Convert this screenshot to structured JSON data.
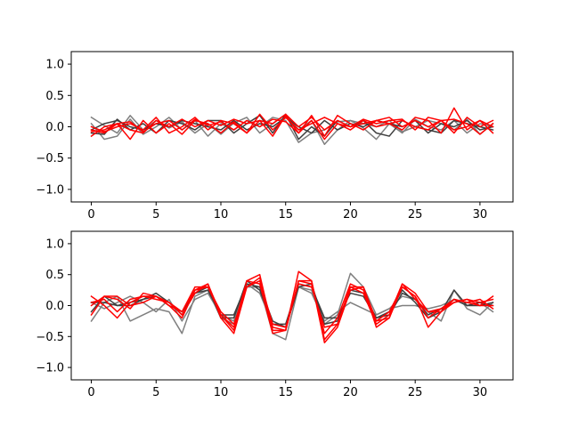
{
  "chart_data": [
    {
      "type": "line",
      "title": "",
      "xlabel": "",
      "ylabel": "",
      "xlim": [
        -1.55,
        32.55
      ],
      "ylim": [
        -1.2,
        1.2
      ],
      "x": [
        0,
        1,
        2,
        3,
        4,
        5,
        6,
        7,
        8,
        9,
        10,
        11,
        12,
        13,
        14,
        15,
        16,
        17,
        18,
        19,
        20,
        21,
        22,
        23,
        24,
        25,
        26,
        27,
        28,
        29,
        30,
        31
      ],
      "xticks": [
        0,
        5,
        10,
        15,
        20,
        25,
        30
      ],
      "xtick_labels": [
        "0",
        "5",
        "10",
        "15",
        "20",
        "25",
        "30"
      ],
      "yticks": [
        1.0,
        0.5,
        0.0,
        -0.5,
        -1.0
      ],
      "ytick_labels": [
        "1.0",
        "0.5",
        "0.0",
        "−0.5",
        "−1.0"
      ],
      "grid": false,
      "series": [
        {
          "color": "#7f7f7f",
          "values": [
            0.15,
            0.02,
            -0.1,
            0.18,
            -0.05,
            0.1,
            -0.02,
            0.08,
            -0.1,
            0.05,
            -0.12,
            0.06,
            0.15,
            -0.1,
            0.05,
            0.2,
            -0.05,
            0.1,
            -0.28,
            -0.05,
            0.1,
            -0.02,
            -0.2,
            0.05,
            -0.1,
            0.12,
            0.0,
            -0.05,
            0.1,
            -0.1,
            0.05,
            0.0
          ]
        },
        {
          "color": "#7f7f7f",
          "values": [
            0.05,
            -0.2,
            -0.15,
            0.12,
            -0.12,
            0.0,
            0.15,
            -0.05,
            0.1,
            -0.15,
            0.05,
            -0.05,
            0.1,
            0.0,
            0.15,
            0.1,
            -0.25,
            -0.1,
            -0.05,
            0.08,
            0.1,
            0.05,
            0.0,
            0.1,
            -0.08,
            0.0,
            0.1,
            0.05,
            -0.05,
            0.12,
            -0.12,
            0.05
          ]
        },
        {
          "color": "#3f3f3f",
          "values": [
            -0.1,
            -0.12,
            0.12,
            -0.05,
            0.05,
            -0.1,
            0.1,
            0.05,
            -0.05,
            0.1,
            0.1,
            -0.1,
            0.05,
            0.18,
            -0.1,
            0.2,
            -0.2,
            0.0,
            -0.15,
            0.1,
            0.0,
            0.1,
            -0.1,
            -0.15,
            0.1,
            0.0,
            -0.05,
            -0.1,
            0.1,
            0.05,
            0.0,
            -0.05
          ]
        },
        {
          "color": "#3f3f3f",
          "values": [
            -0.05,
            0.05,
            0.1,
            0.0,
            -0.05,
            0.05,
            0.0,
            0.1,
            0.05,
            0.0,
            -0.05,
            0.1,
            -0.05,
            0.05,
            0.0,
            0.15,
            0.0,
            -0.1,
            0.1,
            -0.05,
            0.05,
            0.0,
            0.1,
            0.05,
            0.0,
            0.1,
            -0.1,
            0.05,
            0.0,
            0.1,
            -0.05,
            0.0
          ]
        },
        {
          "color": "#ff0000",
          "values": [
            -0.05,
            -0.1,
            0.05,
            -0.2,
            0.1,
            -0.1,
            0.05,
            -0.12,
            0.1,
            0.05,
            -0.1,
            0.08,
            -0.1,
            0.1,
            -0.15,
            0.18,
            -0.1,
            0.18,
            -0.15,
            0.18,
            0.05,
            -0.05,
            0.1,
            0.05,
            -0.05,
            0.15,
            0.1,
            -0.1,
            0.3,
            -0.05,
            0.1,
            -0.1
          ]
        },
        {
          "color": "#ff0000",
          "values": [
            -0.15,
            0.0,
            0.05,
            0.08,
            -0.08,
            0.05,
            0.1,
            -0.05,
            0.12,
            0.02,
            0.08,
            -0.05,
            0.1,
            0.0,
            0.12,
            0.08,
            -0.1,
            0.1,
            -0.2,
            0.05,
            0.0,
            0.12,
            0.05,
            0.1,
            0.12,
            -0.05,
            0.15,
            0.1,
            0.12,
            0.05,
            -0.12,
            0.05
          ]
        },
        {
          "color": "#ff0000",
          "values": [
            -0.08,
            -0.05,
            0.05,
            -0.05,
            -0.1,
            0.1,
            0.0,
            0.12,
            0.0,
            0.1,
            0.02,
            0.12,
            0.05,
            0.1,
            0.05,
            0.2,
            0.0,
            0.15,
            -0.05,
            0.1,
            0.0,
            0.05,
            0.1,
            0.15,
            0.0,
            0.1,
            0.0,
            0.1,
            -0.1,
            0.15,
            0.0,
            0.1
          ]
        },
        {
          "color": "#ff0000",
          "values": [
            0.0,
            -0.08,
            0.0,
            0.05,
            -0.05,
            0.15,
            -0.1,
            0.0,
            0.15,
            -0.05,
            0.1,
            0.05,
            -0.1,
            0.2,
            -0.05,
            0.15,
            -0.05,
            0.05,
            0.15,
            0.05,
            -0.05,
            0.1,
            0.0,
            0.05,
            0.1,
            0.0,
            -0.05,
            0.1,
            -0.05,
            0.0,
            0.1,
            0.0
          ]
        }
      ]
    },
    {
      "type": "line",
      "title": "",
      "xlabel": "",
      "ylabel": "",
      "xlim": [
        -1.55,
        32.55
      ],
      "ylim": [
        -1.2,
        1.2
      ],
      "x": [
        0,
        1,
        2,
        3,
        4,
        5,
        6,
        7,
        8,
        9,
        10,
        11,
        12,
        13,
        14,
        15,
        16,
        17,
        18,
        19,
        20,
        21,
        22,
        23,
        24,
        25,
        26,
        27,
        28,
        29,
        30,
        31
      ],
      "xticks": [
        0,
        5,
        10,
        15,
        20,
        25,
        30
      ],
      "xtick_labels": [
        "0",
        "5",
        "10",
        "15",
        "20",
        "25",
        "30"
      ],
      "yticks": [
        1.0,
        0.5,
        0.0,
        -0.5,
        -1.0
      ],
      "ytick_labels": [
        "1.0",
        "0.5",
        "0.0",
        "−0.5",
        "−1.0"
      ],
      "grid": false,
      "series": [
        {
          "color": "#7f7f7f",
          "values": [
            -0.25,
            0.05,
            0.15,
            -0.25,
            -0.15,
            -0.05,
            -0.1,
            -0.45,
            0.15,
            0.25,
            -0.2,
            -0.3,
            0.3,
            0.3,
            -0.45,
            -0.55,
            0.3,
            0.25,
            -0.3,
            -0.15,
            0.52,
            0.3,
            -0.15,
            -0.05,
            0.15,
            0.1,
            -0.1,
            -0.25,
            0.25,
            -0.05,
            -0.15,
            0.05
          ]
        },
        {
          "color": "#7f7f7f",
          "values": [
            0.05,
            -0.05,
            0.05,
            0.15,
            0.05,
            -0.1,
            0.1,
            -0.25,
            0.1,
            0.2,
            -0.15,
            -0.25,
            0.35,
            0.2,
            -0.3,
            -0.35,
            0.3,
            0.2,
            -0.25,
            -0.1,
            0.05,
            -0.05,
            -0.15,
            -0.05,
            0.0,
            0.0,
            -0.05,
            0.0,
            0.1,
            0.0,
            0.05,
            -0.1
          ]
        },
        {
          "color": "#3f3f3f",
          "values": [
            0.05,
            0.05,
            0.0,
            0.05,
            0.1,
            0.2,
            0.05,
            -0.15,
            0.2,
            0.3,
            -0.2,
            -0.2,
            0.4,
            0.25,
            -0.3,
            -0.3,
            0.35,
            0.3,
            -0.2,
            -0.2,
            0.2,
            0.15,
            -0.2,
            -0.1,
            0.25,
            0.05,
            -0.2,
            -0.1,
            0.25,
            0.0,
            0.05,
            0.0
          ]
        },
        {
          "color": "#3f3f3f",
          "values": [
            -0.1,
            0.15,
            0.0,
            0.0,
            0.1,
            0.15,
            0.0,
            -0.1,
            0.2,
            0.25,
            -0.15,
            -0.15,
            0.35,
            0.3,
            -0.25,
            -0.35,
            0.3,
            0.35,
            -0.3,
            -0.25,
            0.25,
            0.2,
            -0.2,
            -0.15,
            0.2,
            0.1,
            -0.15,
            -0.05,
            0.1,
            0.0,
            0.0,
            0.05
          ]
        },
        {
          "color": "#ff0000",
          "values": [
            0.15,
            0.0,
            -0.2,
            0.05,
            0.15,
            0.1,
            0.05,
            -0.1,
            0.3,
            0.3,
            -0.15,
            -0.4,
            0.4,
            0.5,
            -0.4,
            -0.4,
            0.55,
            0.4,
            -0.55,
            -0.3,
            0.3,
            0.3,
            -0.35,
            -0.2,
            0.35,
            0.2,
            -0.1,
            -0.05,
            0.1,
            0.05,
            0.0,
            0.15
          ]
        },
        {
          "color": "#ff0000",
          "values": [
            -0.15,
            0.15,
            0.1,
            -0.05,
            0.2,
            0.15,
            0.0,
            -0.2,
            0.25,
            0.35,
            -0.2,
            -0.45,
            0.3,
            0.45,
            -0.35,
            -0.4,
            0.4,
            0.35,
            -0.45,
            -0.2,
            0.35,
            0.25,
            -0.25,
            -0.1,
            0.3,
            0.15,
            -0.2,
            -0.05,
            0.05,
            0.1,
            0.05,
            0.1
          ]
        },
        {
          "color": "#ff0000",
          "values": [
            0.05,
            0.1,
            -0.1,
            0.1,
            0.15,
            0.15,
            0.05,
            -0.15,
            0.2,
            0.35,
            -0.15,
            -0.35,
            0.4,
            0.35,
            -0.45,
            -0.4,
            0.4,
            0.4,
            -0.6,
            -0.35,
            0.25,
            0.3,
            -0.25,
            -0.2,
            0.3,
            0.15,
            -0.35,
            -0.1,
            0.1,
            0.05,
            0.1,
            -0.05
          ]
        },
        {
          "color": "#ff0000",
          "values": [
            0.0,
            0.15,
            0.15,
            0.0,
            0.05,
            0.15,
            0.0,
            -0.1,
            0.25,
            0.3,
            -0.1,
            -0.3,
            0.3,
            0.4,
            -0.3,
            -0.35,
            0.35,
            0.3,
            -0.35,
            -0.3,
            0.3,
            0.2,
            -0.3,
            -0.15,
            0.35,
            0.1,
            -0.1,
            -0.1,
            0.05,
            0.1,
            0.0,
            0.0
          ]
        }
      ]
    }
  ]
}
